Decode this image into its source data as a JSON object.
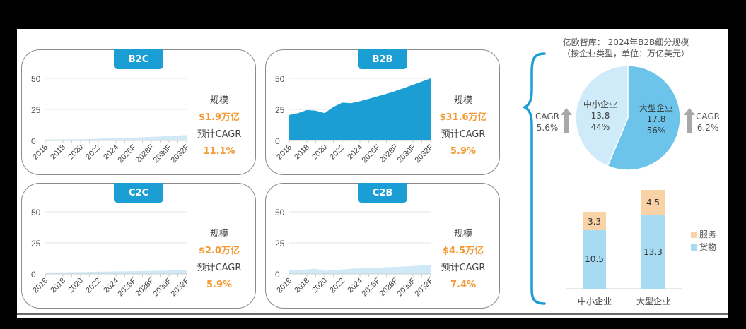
{
  "colors": {
    "tag": "#1b9ed3",
    "b2b_area": "#1b9ed3",
    "light_area": "#cfe9f7",
    "accent_orange": "#f39a32",
    "pie_sme": "#cfeaf8",
    "pie_large": "#6cc4ea",
    "bar_goods": "#a6dbf2",
    "bar_service": "#f9d2a6",
    "brace": "#1b9ed3"
  },
  "panels": [
    {
      "tag": "B2C",
      "scale_label": "规模",
      "scale_value": "$1.9万亿",
      "cagr_label": "预计CAGR",
      "cagr_value": "11.1%"
    },
    {
      "tag": "B2B",
      "scale_label": "规模",
      "scale_value": "$31.6万亿",
      "cagr_label": "预计CAGR",
      "cagr_value": "5.9%"
    },
    {
      "tag": "C2C",
      "scale_label": "规模",
      "scale_value": "$2.0万亿",
      "cagr_label": "预计CAGR",
      "cagr_value": "5.9%"
    },
    {
      "tag": "C2B",
      "scale_label": "规模",
      "scale_value": "$4.5万亿",
      "cagr_label": "预计CAGR",
      "cagr_value": "7.4%"
    }
  ],
  "right": {
    "title_line1": "亿欧智库： 2024年B2B细分规模",
    "title_line2": "（按企业类型，单位：万亿美元）",
    "cagr_left_label": "CAGR",
    "cagr_left_value": "5.6%",
    "cagr_right_label": "CAGR",
    "cagr_right_value": "6.2%",
    "pie_sme_name": "中小企业",
    "pie_sme_value": "13.8",
    "pie_sme_pct": "44%",
    "pie_large_name": "大型企业",
    "pie_large_value": "17.8",
    "pie_large_pct": "56%",
    "legend_service": "服务",
    "legend_goods": "货物",
    "bar_cat_sme": "中小企业",
    "bar_cat_large": "大型企业",
    "bar_sme_goods": "10.5",
    "bar_sme_service": "3.3",
    "bar_large_goods": "13.3",
    "bar_large_service": "4.5"
  },
  "chart_data": [
    {
      "type": "area",
      "title": "B2C",
      "x": [
        "2016",
        "2017",
        "2018",
        "2019",
        "2020",
        "2021",
        "2022",
        "2023",
        "2024",
        "2025F",
        "2026F",
        "2027F",
        "2028F",
        "2029F",
        "2030F",
        "2031F",
        "2032F"
      ],
      "xtick_labels": [
        "2016",
        "2018",
        "2020",
        "2022",
        "2024",
        "2026F",
        "2028F",
        "2030F",
        "2032F"
      ],
      "values": [
        0.8,
        0.85,
        0.9,
        0.95,
        1.0,
        1.2,
        1.4,
        1.6,
        1.9,
        2.1,
        2.3,
        2.6,
        2.9,
        3.2,
        3.6,
        4.0,
        4.4
      ],
      "ylim": [
        0,
        50
      ],
      "yticks": [
        0,
        25,
        50
      ],
      "grid": true
    },
    {
      "type": "area",
      "title": "B2B",
      "x": [
        "2016",
        "2017",
        "2018",
        "2019",
        "2020",
        "2021",
        "2022",
        "2023",
        "2024",
        "2025F",
        "2026F",
        "2027F",
        "2028F",
        "2029F",
        "2030F",
        "2031F",
        "2032F"
      ],
      "xtick_labels": [
        "2016",
        "2018",
        "2020",
        "2022",
        "2024",
        "2026F",
        "2028F",
        "2030F",
        "2032F"
      ],
      "values": [
        20.5,
        22,
        24.5,
        24,
        22,
        27,
        30.5,
        30,
        31.6,
        33.5,
        35.5,
        37.5,
        39.8,
        42.2,
        44.8,
        47.4,
        50
      ],
      "ylim": [
        0,
        50
      ],
      "yticks": [
        0,
        25,
        50
      ],
      "grid": true
    },
    {
      "type": "area",
      "title": "C2C",
      "x": [
        "2016",
        "2017",
        "2018",
        "2019",
        "2020",
        "2021",
        "2022",
        "2023",
        "2024",
        "2025F",
        "2026F",
        "2027F",
        "2028F",
        "2029F",
        "2030F",
        "2031F",
        "2032F"
      ],
      "xtick_labels": [
        "2016",
        "2018",
        "2020",
        "2022",
        "2024",
        "2026F",
        "2028F",
        "2030F",
        "2032F"
      ],
      "values": [
        1.2,
        1.25,
        1.3,
        1.4,
        1.5,
        1.7,
        1.8,
        1.9,
        2.0,
        2.1,
        2.2,
        2.35,
        2.5,
        2.6,
        2.75,
        2.9,
        3.1
      ],
      "ylim": [
        0,
        50
      ],
      "yticks": [
        0,
        25,
        50
      ],
      "grid": true
    },
    {
      "type": "area",
      "title": "C2B",
      "x": [
        "2016",
        "2017",
        "2018",
        "2019",
        "2020",
        "2021",
        "2022",
        "2023",
        "2024",
        "2025F",
        "2026F",
        "2027F",
        "2028F",
        "2029F",
        "2030F",
        "2031F",
        "2032F"
      ],
      "xtick_labels": [
        "2016",
        "2018",
        "2020",
        "2022",
        "2024",
        "2026F",
        "2028F",
        "2030F",
        "2032F"
      ],
      "values": [
        2.8,
        3.2,
        3.6,
        4.2,
        2.5,
        3.2,
        3.6,
        4.2,
        4.5,
        4.8,
        5.1,
        5.4,
        5.7,
        6.0,
        6.4,
        6.8,
        7.2
      ],
      "ylim": [
        0,
        50
      ],
      "yticks": [
        0,
        25,
        50
      ],
      "grid": true
    },
    {
      "type": "pie",
      "title": "亿欧智库： 2024年B2B细分规模（按企业类型，单位：万亿美元）",
      "labels": [
        "中小企业",
        "大型企业"
      ],
      "values": [
        13.8,
        17.8
      ],
      "percent": [
        44,
        56
      ],
      "annotations": [
        "CAGR 5.6%",
        "CAGR 6.2%"
      ]
    },
    {
      "type": "bar",
      "stacked": true,
      "categories": [
        "中小企业",
        "大型企业"
      ],
      "series": [
        {
          "name": "货物",
          "values": [
            10.5,
            13.3
          ]
        },
        {
          "name": "服务",
          "values": [
            3.3,
            4.5
          ]
        }
      ],
      "legend_position": "right"
    }
  ]
}
